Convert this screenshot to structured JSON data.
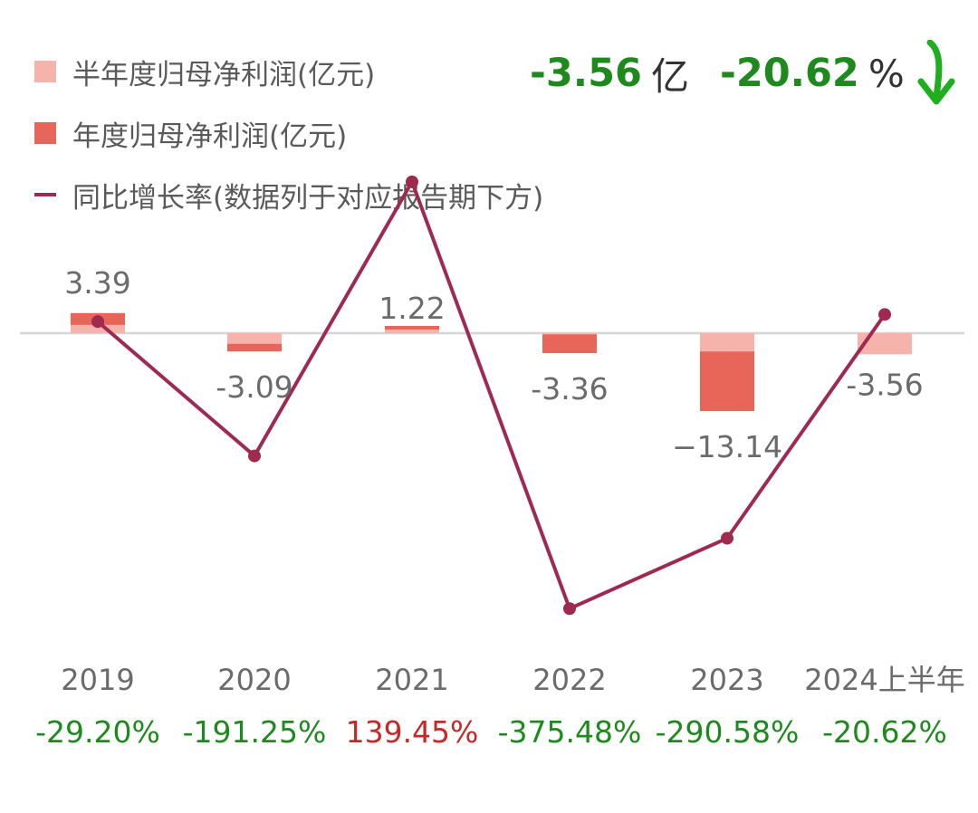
{
  "headline": {
    "value": "-3.56",
    "unit": "亿",
    "pct": "-20.62",
    "pct_unit": "%"
  },
  "legend": [
    {
      "label": "半年度归母净利润(亿元)",
      "color": "#f5b3ab"
    },
    {
      "label": "年度归母净利润(亿元)",
      "color": "#e8655a"
    },
    {
      "label": "同比增长率(数据列于对应报告期下方)",
      "color": "#9e2a4f"
    }
  ],
  "colors": {
    "half_bar": "#f5b3ab",
    "annual_bar": "#e8655a",
    "line": "#9e2a4f",
    "up": "#c62828",
    "down": "#1e8a1e",
    "label": "#6b6b6b",
    "baseline": "#d6d6d6",
    "arrow": "#1eae1e"
  },
  "chart_data": {
    "type": "bar",
    "categories": [
      "2019",
      "2020",
      "2021",
      "2022",
      "2023",
      "2024上半年"
    ],
    "series": [
      {
        "name": "半年度归母净利润(亿元)",
        "values": [
          null,
          null,
          null,
          null,
          null,
          -3.56
        ]
      },
      {
        "name": "年度归母净利润(亿元)",
        "values": [
          3.39,
          -3.09,
          1.22,
          -3.36,
          -13.14,
          null
        ]
      },
      {
        "name": "同比增长率(数据列于对应报告期下方)",
        "values": [
          -29.2,
          -191.25,
          139.45,
          -375.48,
          -290.58,
          -20.62
        ],
        "unit": "%"
      }
    ],
    "bar_labels": [
      "3.39",
      "-3.09",
      "1.22",
      "-3.36",
      "−13.14",
      "-3.56"
    ],
    "growth_labels": [
      "-29.20%",
      "-191.25%",
      "139.45%",
      "-375.48%",
      "-290.58%",
      "-20.62%"
    ],
    "half_year_components": [
      1.4,
      -1.8,
      0.6,
      -0.2,
      -3.1,
      -3.56
    ],
    "bar_ylim": [
      -15,
      4
    ],
    "line_ylim": [
      -420,
      160
    ]
  }
}
